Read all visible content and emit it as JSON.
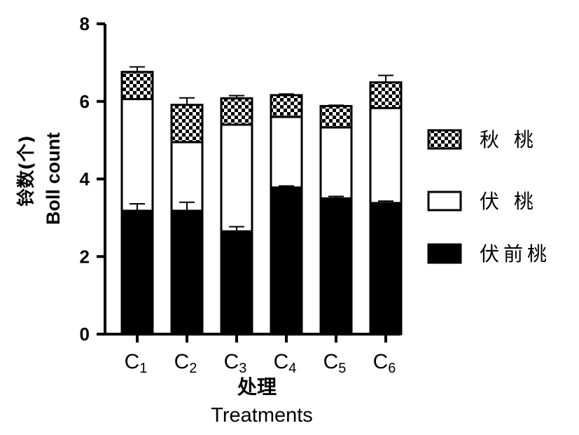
{
  "chart_data": {
    "type": "bar",
    "stacked": true,
    "title": "",
    "ylabel_cn": "铃数(个)",
    "ylabel_en": "Boll count",
    "xlabel_cn": "处理",
    "xlabel_en": "Treatments",
    "ylim": [
      0,
      8
    ],
    "yticks": [
      "0",
      "2",
      "4",
      "6",
      "8"
    ],
    "categories": [
      {
        "main": "C",
        "sub": "1"
      },
      {
        "main": "C",
        "sub": "2"
      },
      {
        "main": "C",
        "sub": "3"
      },
      {
        "main": "C",
        "sub": "4"
      },
      {
        "main": "C",
        "sub": "5"
      },
      {
        "main": "C",
        "sub": "6"
      }
    ],
    "series": [
      {
        "name": "伏前桃",
        "fill": "solid",
        "color": "#000000",
        "values": [
          3.18,
          3.18,
          2.65,
          3.78,
          3.5,
          3.38
        ],
        "errors": [
          0.18,
          0.22,
          0.12,
          0.04,
          0.05,
          0.05
        ]
      },
      {
        "name": "伏 桃",
        "fill": "hollow",
        "color": "#ffffff",
        "values": [
          2.88,
          1.77,
          2.75,
          1.82,
          1.83,
          2.45
        ],
        "errors": [
          0,
          0,
          0,
          0,
          0,
          0
        ]
      },
      {
        "name": "秋 桃",
        "fill": "checker",
        "color": "#000000",
        "values": [
          0.7,
          0.96,
          0.68,
          0.56,
          0.55,
          0.66
        ],
        "errors": [
          0.13,
          0.18,
          0.07,
          0.03,
          0.02,
          0.18
        ]
      }
    ],
    "legend_position": "right",
    "legend_order": [
      "秋 桃",
      "伏 桃",
      "伏前桃"
    ],
    "grid": false
  }
}
